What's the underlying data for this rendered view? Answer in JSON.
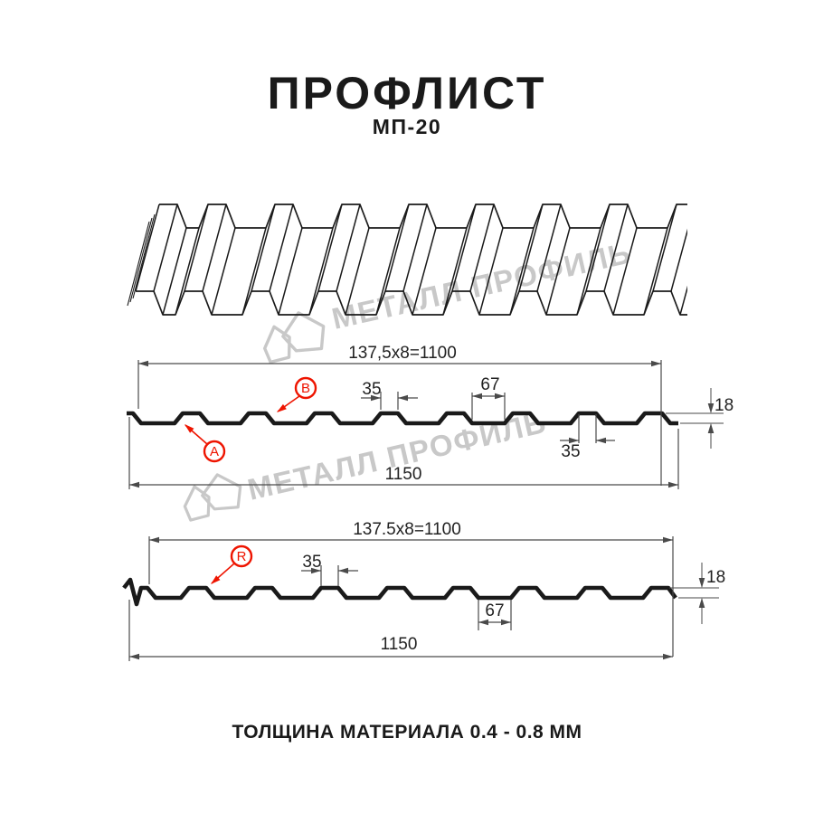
{
  "page": {
    "title": "ПРОФЛИСТ",
    "subtitle": "МП-20",
    "footer": "ТОЛЩИНА МАТЕРИАЛА 0.4 - 0.8 ММ"
  },
  "watermark": {
    "text": "МЕТАЛЛ ПРОФИЛЬ",
    "color": "#c8c8c8"
  },
  "colors": {
    "profile_line": "#1a1a1a",
    "dimension_line": "#4a4a4a",
    "accent_red": "#ee1400"
  },
  "profile_top_view": {
    "working_width": "137,5x8=1100",
    "overall_width": "1150",
    "rib_top_width": "35",
    "valley_width": "67",
    "rib_bottom_width": "35",
    "profile_height": "18",
    "side_label_a": "A",
    "side_label_b": "B"
  },
  "profile_bottom_view": {
    "working_width": "137.5x8=1100",
    "overall_width": "1150",
    "rib_top_width": "35",
    "valley_width": "67",
    "profile_height": "18",
    "side_label_r": "R"
  }
}
